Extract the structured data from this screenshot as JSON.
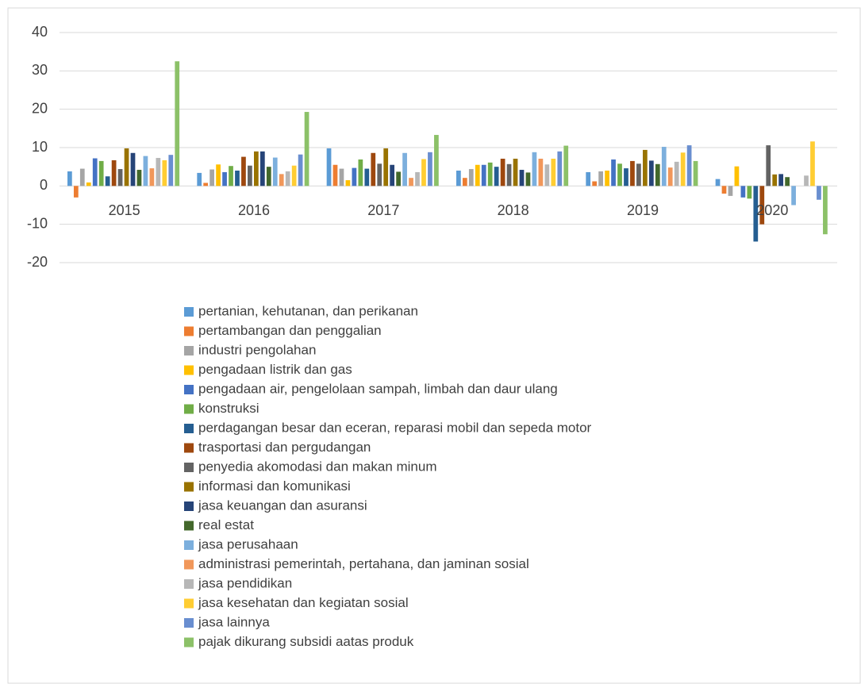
{
  "chart_data": {
    "type": "bar",
    "categories": [
      "2015",
      "2016",
      "2017",
      "2018",
      "2019",
      "2020"
    ],
    "series": [
      {
        "name": "pertanian, kehutanan, dan perikanan",
        "color": "#5b9bd5",
        "values": [
          3.8,
          3.4,
          9.8,
          4.0,
          3.6,
          1.8
        ]
      },
      {
        "name": "pertambangan dan penggalian",
        "color": "#ed7d31",
        "values": [
          -3.0,
          0.8,
          5.5,
          2.1,
          1.2,
          -2.0
        ]
      },
      {
        "name": "industri pengolahan",
        "color": "#a5a5a5",
        "values": [
          4.5,
          4.3,
          4.5,
          4.4,
          3.8,
          -2.6
        ]
      },
      {
        "name": "pengadaan listrik dan gas",
        "color": "#ffc000",
        "values": [
          0.9,
          5.6,
          1.5,
          5.5,
          4.0,
          5.1
        ]
      },
      {
        "name": "pengadaan air, pengelolaan sampah, limbah dan daur ulang",
        "color": "#4472c4",
        "values": [
          7.2,
          3.6,
          4.7,
          5.5,
          6.9,
          -3.0
        ]
      },
      {
        "name": "konstruksi",
        "color": "#70ad47",
        "values": [
          6.5,
          5.2,
          6.9,
          6.1,
          5.8,
          -3.3
        ]
      },
      {
        "name": "perdagangan besar dan eceran, reparasi mobil dan sepeda motor",
        "color": "#255e91",
        "values": [
          2.5,
          4.0,
          4.5,
          5.0,
          4.6,
          -14.5
        ]
      },
      {
        "name": "trasportasi dan pergudangan",
        "color": "#9e480e",
        "values": [
          6.7,
          7.6,
          8.6,
          7.1,
          6.5,
          -10.0
        ]
      },
      {
        "name": "penyedia akomodasi dan makan minum",
        "color": "#636363",
        "values": [
          4.4,
          5.3,
          5.8,
          5.7,
          5.8,
          10.6
        ]
      },
      {
        "name": "informasi dan komunikasi",
        "color": "#997300",
        "values": [
          9.8,
          9.0,
          9.8,
          7.1,
          9.4,
          3.0
        ]
      },
      {
        "name": "jasa keuangan dan asuransi",
        "color": "#264478",
        "values": [
          8.6,
          9.0,
          5.5,
          4.2,
          6.6,
          3.1
        ]
      },
      {
        "name": "real estat",
        "color": "#43682b",
        "values": [
          4.2,
          5.0,
          3.7,
          3.5,
          5.7,
          2.3
        ]
      },
      {
        "name": "jasa perusahaan",
        "color": "#7cafdd",
        "values": [
          7.8,
          7.4,
          8.6,
          8.8,
          10.2,
          -5.0
        ]
      },
      {
        "name": "administrasi pemerintah, pertahana, dan jaminan sosial",
        "color": "#f1975a",
        "values": [
          4.6,
          3.1,
          2.1,
          7.1,
          4.8,
          0
        ]
      },
      {
        "name": "jasa pendidikan",
        "color": "#b7b7b7",
        "values": [
          7.3,
          3.8,
          3.6,
          5.6,
          6.3,
          2.7
        ]
      },
      {
        "name": "jasa kesehatan dan kegiatan sosial",
        "color": "#ffcd33",
        "values": [
          6.7,
          5.3,
          7.0,
          7.1,
          8.7,
          11.6
        ]
      },
      {
        "name": "jasa lainnya",
        "color": "#698ed0",
        "values": [
          8.1,
          8.2,
          8.8,
          9.0,
          10.6,
          -3.6
        ]
      },
      {
        "name": "pajak dikurang subsidi aatas produk",
        "color": "#8cc168",
        "values": [
          32.5,
          19.3,
          13.3,
          10.5,
          6.5,
          -12.6
        ]
      }
    ],
    "ylim": [
      -20,
      40
    ],
    "yticks": [
      -20,
      -10,
      0,
      10,
      20,
      30,
      40
    ],
    "grid": true,
    "legend": "bottom"
  }
}
